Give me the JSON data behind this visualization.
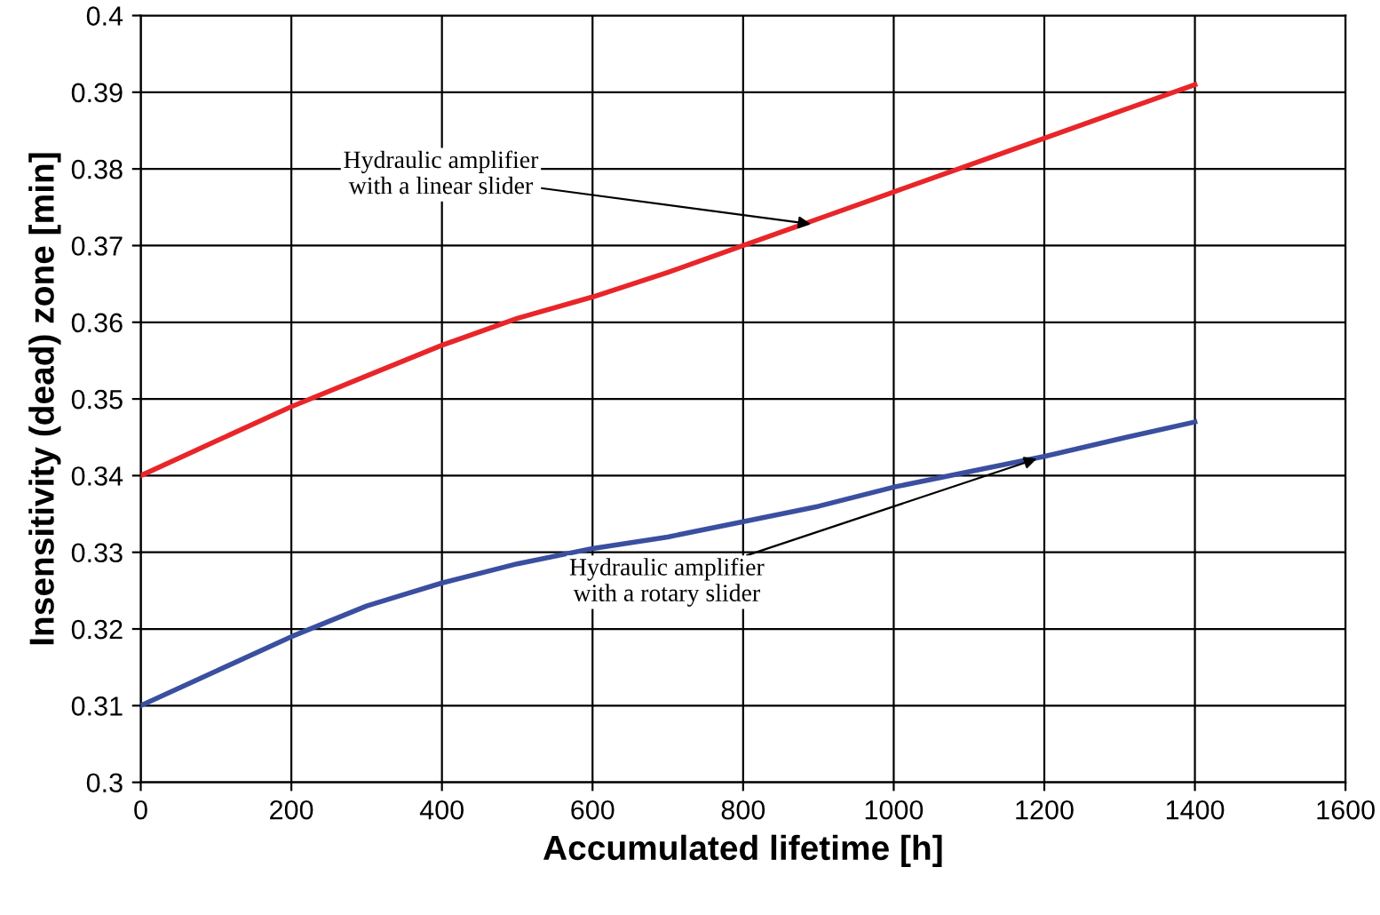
{
  "chart_data": {
    "type": "line",
    "xlabel": "Accumulated lifetime [h]",
    "ylabel": "Insensitivity (dead) zone [min]",
    "xlim": [
      0,
      1600
    ],
    "xticks": [
      0,
      200,
      400,
      600,
      800,
      1000,
      1200,
      1400,
      1600
    ],
    "ylim": [
      0.3,
      0.4
    ],
    "yticks": [
      0.3,
      0.31,
      0.32,
      0.33,
      0.34,
      0.35,
      0.36,
      0.37,
      0.38,
      0.39,
      0.4
    ],
    "grid": true,
    "legend": false,
    "marker": "none",
    "line_style": "solid",
    "series": [
      {
        "color": "#e8262a",
        "x": [
          0,
          100,
          200,
          300,
          400,
          500,
          600,
          700,
          800,
          900,
          1000,
          1100,
          1200,
          1300,
          1400
        ],
        "values": [
          0.34,
          0.3445,
          0.349,
          0.353,
          0.357,
          0.3605,
          0.3633,
          0.3665,
          0.37,
          0.3735,
          0.377,
          0.3805,
          0.384,
          0.3875,
          0.391
        ]
      },
      {
        "color": "#3a4fa0",
        "x": [
          0,
          100,
          200,
          300,
          350,
          400,
          500,
          600,
          700,
          800,
          900,
          1000,
          1100,
          1200,
          1300,
          1400
        ],
        "values": [
          0.31,
          0.3145,
          0.319,
          0.323,
          0.3245,
          0.326,
          0.3285,
          0.3305,
          0.332,
          0.334,
          0.336,
          0.3385,
          0.3405,
          0.3425,
          0.3448,
          0.347
        ]
      }
    ],
    "annotations": [
      {
        "text": "Hydraulic amplifier\nwith a linear slider",
        "x": 890,
        "y": 0.3728
      },
      {
        "text": "Hydraulic amplifier\nwith a rotary slider",
        "x": 1190,
        "y": 0.3422
      }
    ]
  }
}
